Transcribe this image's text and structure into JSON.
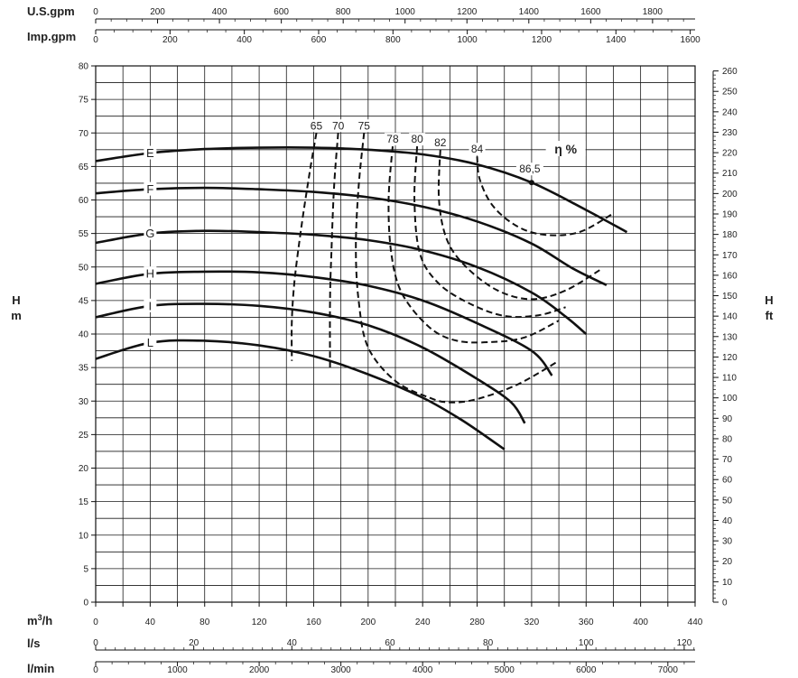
{
  "chart_data": {
    "type": "line",
    "title": "",
    "left_axis": {
      "label_line1": "H",
      "label_line2": "m",
      "ylim": [
        0,
        80
      ],
      "ticks": [
        0,
        5,
        10,
        15,
        20,
        25,
        30,
        35,
        40,
        45,
        50,
        55,
        60,
        65,
        70,
        75,
        80
      ]
    },
    "right_axis": {
      "label_line1": "H",
      "label_line2": "ft",
      "ticks": [
        0,
        10,
        20,
        30,
        40,
        50,
        60,
        70,
        80,
        90,
        100,
        110,
        120,
        130,
        140,
        150,
        160,
        170,
        180,
        190,
        200,
        210,
        220,
        230,
        240,
        250,
        260
      ]
    },
    "bottom_axes": [
      {
        "label": "m³/h",
        "label_base": "m",
        "label_sup": "3",
        "label_tail": "/h",
        "ticks": [
          "0",
          "40",
          "80",
          "120",
          "160",
          "200",
          "240",
          "280",
          "320",
          "360",
          "400",
          "440"
        ]
      },
      {
        "label": "l/s",
        "ticks": [
          "0",
          "20",
          "40",
          "60",
          "80",
          "100",
          "120"
        ]
      },
      {
        "label": "l/min",
        "ticks": [
          "0",
          "1000",
          "2000",
          "3000",
          "4000",
          "5000",
          "6000",
          "7000"
        ]
      }
    ],
    "top_axes": [
      {
        "label": "U.S.gpm",
        "ticks": [
          "0",
          "200",
          "400",
          "600",
          "800",
          "1000",
          "1200",
          "1400",
          "1600",
          "1800"
        ]
      },
      {
        "label": "Imp.gpm",
        "ticks": [
          "0",
          "200",
          "400",
          "600",
          "800",
          "1000",
          "1200",
          "1400",
          "1600"
        ]
      }
    ],
    "xlim": [
      0,
      440
    ],
    "series": [
      {
        "name": "E",
        "points": [
          [
            0,
            65.8
          ],
          [
            40,
            67.0
          ],
          [
            80,
            67.6
          ],
          [
            120,
            67.8
          ],
          [
            160,
            67.8
          ],
          [
            200,
            67.5
          ],
          [
            240,
            66.8
          ],
          [
            280,
            65.3
          ],
          [
            320,
            62.6
          ],
          [
            360,
            58.5
          ],
          [
            390,
            55.2
          ]
        ]
      },
      {
        "name": "F",
        "points": [
          [
            0,
            61.0
          ],
          [
            40,
            61.6
          ],
          [
            80,
            61.8
          ],
          [
            120,
            61.6
          ],
          [
            160,
            61.2
          ],
          [
            200,
            60.4
          ],
          [
            240,
            59.0
          ],
          [
            280,
            56.8
          ],
          [
            320,
            53.5
          ],
          [
            350,
            49.8
          ],
          [
            375,
            47.3
          ]
        ]
      },
      {
        "name": "G",
        "points": [
          [
            0,
            53.6
          ],
          [
            40,
            55.0
          ],
          [
            80,
            55.4
          ],
          [
            120,
            55.2
          ],
          [
            160,
            54.8
          ],
          [
            200,
            54.0
          ],
          [
            240,
            52.5
          ],
          [
            280,
            50.0
          ],
          [
            320,
            46.2
          ],
          [
            345,
            42.6
          ],
          [
            360,
            40.0
          ]
        ]
      },
      {
        "name": "H",
        "points": [
          [
            0,
            47.5
          ],
          [
            40,
            49.0
          ],
          [
            80,
            49.3
          ],
          [
            120,
            49.2
          ],
          [
            160,
            48.5
          ],
          [
            200,
            47.2
          ],
          [
            240,
            45.0
          ],
          [
            280,
            41.6
          ],
          [
            320,
            37.5
          ],
          [
            335,
            33.8
          ]
        ]
      },
      {
        "name": "I",
        "points": [
          [
            0,
            42.5
          ],
          [
            40,
            44.2
          ],
          [
            80,
            44.5
          ],
          [
            120,
            44.2
          ],
          [
            160,
            43.2
          ],
          [
            200,
            41.3
          ],
          [
            240,
            38.0
          ],
          [
            280,
            33.3
          ],
          [
            305,
            29.8
          ],
          [
            315,
            26.7
          ]
        ]
      },
      {
        "name": "L",
        "points": [
          [
            0,
            36.3
          ],
          [
            40,
            38.7
          ],
          [
            80,
            39.0
          ],
          [
            120,
            38.3
          ],
          [
            160,
            36.7
          ],
          [
            200,
            34.0
          ],
          [
            240,
            30.5
          ],
          [
            270,
            27.0
          ],
          [
            300,
            22.8
          ]
        ]
      }
    ],
    "efficiency_title": "η %",
    "efficiency": [
      {
        "label": "65",
        "points": [
          [
            162,
            70.0
          ],
          [
            157,
            64.0
          ],
          [
            151,
            56.0
          ],
          [
            146,
            48.0
          ],
          [
            144,
            42.0
          ],
          [
            144,
            36.0
          ]
        ]
      },
      {
        "label": "70",
        "points": [
          [
            178,
            70.0
          ],
          [
            175,
            62.0
          ],
          [
            173,
            52.0
          ],
          [
            172,
            45.0
          ],
          [
            172,
            35.0
          ]
        ]
      },
      {
        "label": "75",
        "points": [
          [
            197,
            70.0
          ],
          [
            193,
            62.0
          ],
          [
            191,
            53.0
          ],
          [
            193,
            45.0
          ],
          [
            200,
            38.0
          ],
          [
            220,
            33.0
          ],
          [
            245,
            30.5
          ],
          [
            260,
            29.8
          ],
          [
            280,
            30.3
          ],
          [
            310,
            32.5
          ],
          [
            340,
            36.0
          ]
        ]
      },
      {
        "label": "78",
        "points": [
          [
            218,
            68.0
          ],
          [
            215,
            60.0
          ],
          [
            217,
            52.0
          ],
          [
            225,
            46.0
          ],
          [
            245,
            41.0
          ],
          [
            265,
            39.0
          ],
          [
            290,
            38.8
          ],
          [
            315,
            39.5
          ],
          [
            340,
            42.0
          ]
        ]
      },
      {
        "label": "80",
        "points": [
          [
            236,
            68.0
          ],
          [
            234,
            60.0
          ],
          [
            238,
            52.0
          ],
          [
            252,
            47.5
          ],
          [
            275,
            44.5
          ],
          [
            300,
            42.7
          ],
          [
            325,
            42.8
          ],
          [
            345,
            44.0
          ]
        ]
      },
      {
        "label": "82",
        "points": [
          [
            253,
            67.5
          ],
          [
            252,
            60.0
          ],
          [
            258,
            54.0
          ],
          [
            272,
            50.0
          ],
          [
            295,
            46.5
          ],
          [
            320,
            45.2
          ],
          [
            345,
            46.5
          ],
          [
            372,
            49.8
          ]
        ]
      },
      {
        "label": "84",
        "points": [
          [
            280,
            66.5
          ],
          [
            282,
            63.0
          ],
          [
            292,
            59.0
          ],
          [
            310,
            56.0
          ],
          [
            330,
            54.8
          ],
          [
            355,
            55.2
          ],
          [
            380,
            58.0
          ]
        ]
      }
    ],
    "annotations": [
      {
        "text": "86,5",
        "x": 320,
        "y": 62.6
      }
    ]
  }
}
